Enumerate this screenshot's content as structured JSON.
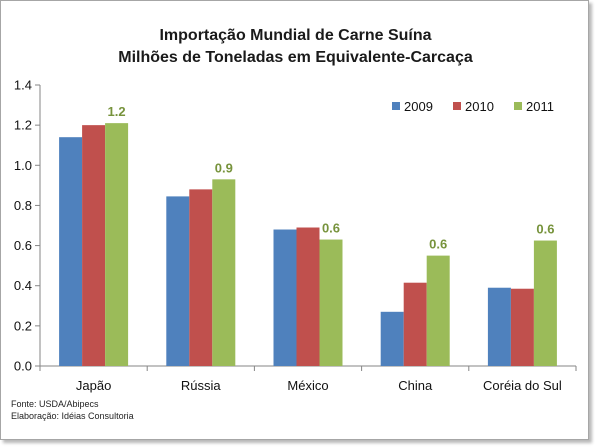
{
  "chart_data": {
    "type": "bar",
    "title": "Importação Mundial de Carne Suína",
    "subtitle": "Milhões de Toneladas em Equivalente-Carcaça",
    "categories": [
      "Japão",
      "Rússia",
      "México",
      "China",
      "Coréia do Sul"
    ],
    "series": [
      {
        "name": "2009",
        "color": "#4f81bd",
        "values": [
          1.14,
          0.845,
          0.68,
          0.27,
          0.39
        ]
      },
      {
        "name": "2010",
        "color": "#c0504d",
        "values": [
          1.2,
          0.88,
          0.69,
          0.415,
          0.385
        ]
      },
      {
        "name": "2011",
        "color": "#9bbb59",
        "values": [
          1.21,
          0.93,
          0.63,
          0.55,
          0.625
        ]
      }
    ],
    "data_labels": {
      "series": "2011",
      "labels": [
        "1.2",
        "0.9",
        "0.6",
        "0.6",
        "0.6"
      ],
      "color": "#77933c"
    },
    "yticks": [
      "0.0",
      "0.2",
      "0.4",
      "0.6",
      "0.8",
      "1.0",
      "1.2",
      "1.4"
    ],
    "ylim": [
      0,
      1.4
    ],
    "grid": false,
    "legend": "top-right"
  },
  "footnotes": {
    "source": "Fonte: USDA/Abipecs",
    "prepared_by": "Elaboração: Idéias Consultoria"
  }
}
